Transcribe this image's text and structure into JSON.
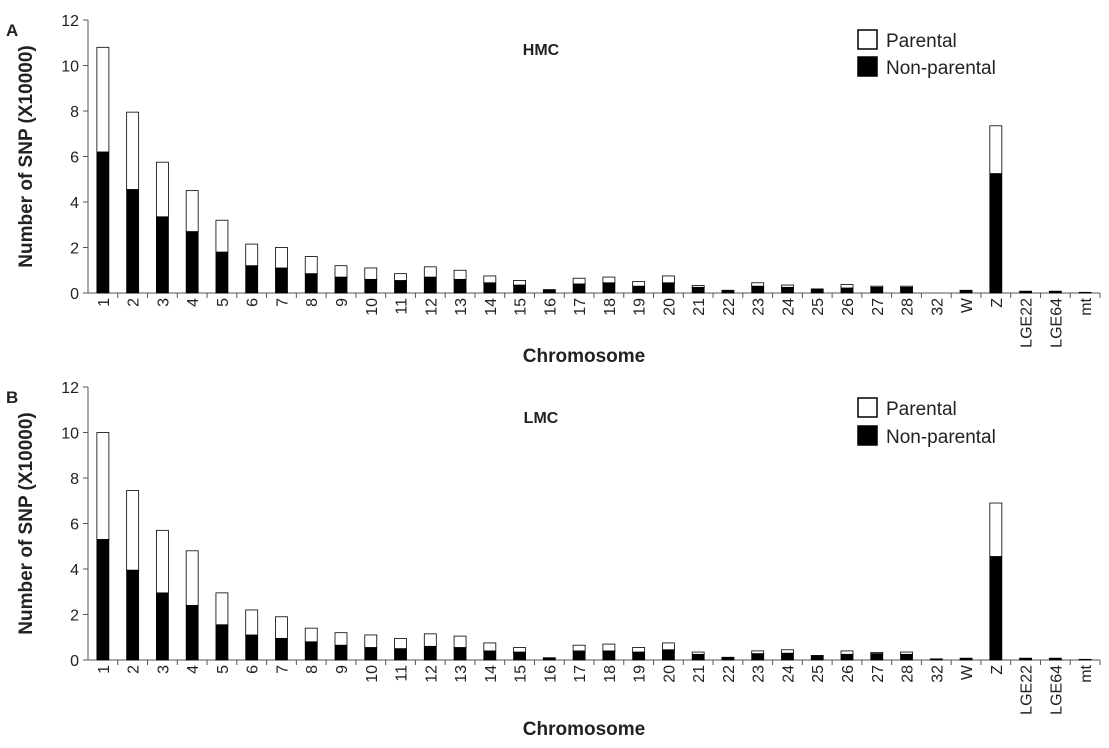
{
  "chart_data": [
    {
      "type": "bar",
      "stacked": true,
      "panel_label": "A",
      "title": "HMC",
      "xlabel": "Chromosome",
      "ylabel": "Number of SNP (X10000)",
      "ylim": [
        0,
        12
      ],
      "yticks": [
        0,
        2,
        4,
        6,
        8,
        10,
        12
      ],
      "grid": false,
      "legend_position": "top-right",
      "categories": [
        "1",
        "2",
        "3",
        "4",
        "5",
        "6",
        "7",
        "8",
        "9",
        "10",
        "11",
        "12",
        "13",
        "14",
        "15",
        "16",
        "17",
        "18",
        "19",
        "20",
        "21",
        "22",
        "23",
        "24",
        "25",
        "26",
        "27",
        "28",
        "32",
        "W",
        "Z",
        "LGE22",
        "LGE64",
        "mt"
      ],
      "series": [
        {
          "name": "Non-parental",
          "color": "#000000",
          "values": [
            6.2,
            4.55,
            3.35,
            2.7,
            1.8,
            1.2,
            1.1,
            0.85,
            0.7,
            0.6,
            0.55,
            0.7,
            0.6,
            0.45,
            0.35,
            0.15,
            0.4,
            0.45,
            0.3,
            0.45,
            0.25,
            0.12,
            0.3,
            0.25,
            0.18,
            0.22,
            0.25,
            0.25,
            0,
            0.12,
            5.25,
            0.08,
            0.08,
            0.03
          ]
        },
        {
          "name": "Parental",
          "color": "#ffffff",
          "values": [
            4.6,
            3.4,
            2.4,
            1.8,
            1.4,
            0.95,
            0.9,
            0.75,
            0.5,
            0.5,
            0.3,
            0.45,
            0.4,
            0.3,
            0.2,
            0,
            0.25,
            0.25,
            0.2,
            0.3,
            0.08,
            0,
            0.15,
            0.1,
            0,
            0.15,
            0.05,
            0.05,
            0,
            0,
            2.1,
            0,
            0,
            0
          ]
        }
      ]
    },
    {
      "type": "bar",
      "stacked": true,
      "panel_label": "B",
      "title": "LMC",
      "xlabel": "Chromosome",
      "ylabel": "Number of SNP (X10000)",
      "ylim": [
        0,
        12
      ],
      "yticks": [
        0,
        2,
        4,
        6,
        8,
        10,
        12
      ],
      "grid": false,
      "legend_position": "top-right",
      "categories": [
        "1",
        "2",
        "3",
        "4",
        "5",
        "6",
        "7",
        "8",
        "9",
        "10",
        "11",
        "12",
        "13",
        "14",
        "15",
        "16",
        "17",
        "18",
        "19",
        "20",
        "21",
        "22",
        "23",
        "24",
        "25",
        "26",
        "27",
        "28",
        "32",
        "W",
        "Z",
        "LGE22",
        "LGE64",
        "mt"
      ],
      "series": [
        {
          "name": "Non-parental",
          "color": "#000000",
          "values": [
            5.3,
            3.95,
            2.95,
            2.4,
            1.55,
            1.1,
            0.95,
            0.8,
            0.65,
            0.55,
            0.5,
            0.6,
            0.55,
            0.4,
            0.35,
            0.1,
            0.4,
            0.4,
            0.35,
            0.45,
            0.25,
            0.12,
            0.28,
            0.3,
            0.2,
            0.25,
            0.28,
            0.25,
            0.05,
            0.08,
            4.55,
            0.08,
            0.08,
            0.03
          ]
        },
        {
          "name": "Parental",
          "color": "#ffffff",
          "values": [
            4.7,
            3.5,
            2.75,
            2.4,
            1.4,
            1.1,
            0.95,
            0.6,
            0.55,
            0.55,
            0.45,
            0.55,
            0.5,
            0.35,
            0.2,
            0,
            0.25,
            0.3,
            0.2,
            0.3,
            0.1,
            0,
            0.12,
            0.15,
            0,
            0.15,
            0.05,
            0.1,
            0,
            0,
            2.35,
            0,
            0,
            0
          ]
        }
      ]
    }
  ]
}
